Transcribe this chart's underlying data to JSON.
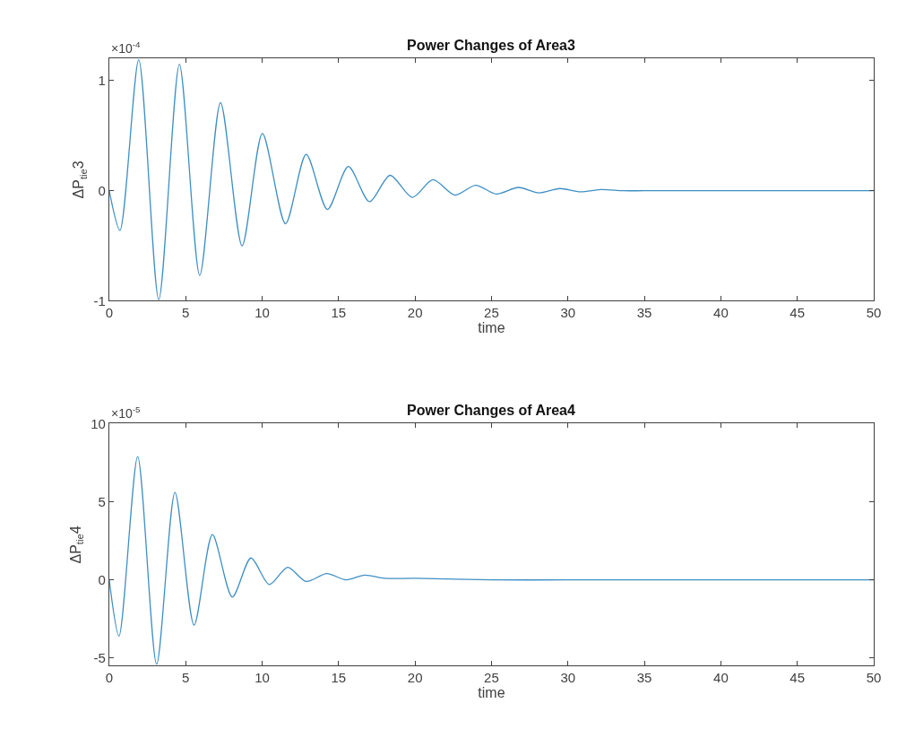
{
  "chart_data": [
    {
      "type": "line",
      "title": "Power Changes of Area3",
      "xlabel": "time",
      "ylabel": "ΔP$_{tie}$3",
      "annotations": [
        "×10$^{-4}$"
      ],
      "x": [
        0,
        0.7,
        1.93,
        3.24,
        4.59,
        5.92,
        7.28,
        8.69,
        10.02,
        11.53,
        12.88,
        14.27,
        15.64,
        17.02,
        18.37,
        19.82,
        21.17,
        22.61,
        23.96,
        25.32,
        26.76,
        28.1,
        29.46,
        30.8,
        32.2,
        33.6,
        35,
        40,
        45,
        50
      ],
      "series": [
        {
          "color": "#3f8fc4",
          "values": [
            0,
            -0.36,
            1.19,
            -0.99,
            1.15,
            -0.77,
            0.8,
            -0.5,
            0.52,
            -0.3,
            0.33,
            -0.17,
            0.22,
            -0.1,
            0.14,
            -0.06,
            0.1,
            -0.04,
            0.05,
            -0.03,
            0.03,
            -0.02,
            0.02,
            -0.01,
            0.01,
            0,
            0,
            0,
            0,
            0
          ]
        }
      ],
      "xlim": [
        0,
        50
      ],
      "xticks": [
        0,
        5,
        10,
        15,
        20,
        25,
        30,
        35,
        40,
        45,
        50
      ],
      "ylim": [
        -1,
        1.2
      ],
      "yticks": [
        -1,
        0,
        1
      ],
      "line_style": "solid"
    },
    {
      "type": "line",
      "title": "Power Changes of Area4",
      "xlabel": "time",
      "ylabel": "ΔP$_{tie}$4",
      "annotations": [
        "×10$^{-5}$"
      ],
      "x": [
        0,
        0.64,
        1.86,
        3.1,
        4.3,
        5.55,
        6.75,
        8.05,
        9.27,
        10.47,
        11.67,
        12.88,
        14.23,
        15.49,
        16.7,
        18,
        20,
        25,
        30,
        35,
        40,
        45,
        50
      ],
      "series": [
        {
          "color": "#3f8fc4",
          "values": [
            0,
            -3.6,
            7.9,
            -5.4,
            5.6,
            -2.9,
            2.9,
            -1.1,
            1.4,
            -0.3,
            0.8,
            -0.1,
            0.4,
            0,
            0.3,
            0.1,
            0.1,
            0,
            0,
            0,
            0,
            0,
            0
          ]
        }
      ],
      "xlim": [
        0,
        50
      ],
      "xticks": [
        0,
        5,
        10,
        15,
        20,
        25,
        30,
        35,
        40,
        45,
        50
      ],
      "ylim": [
        -5.5,
        10
      ],
      "yticks": [
        -5,
        0,
        5,
        10
      ],
      "line_style": "solid"
    }
  ]
}
